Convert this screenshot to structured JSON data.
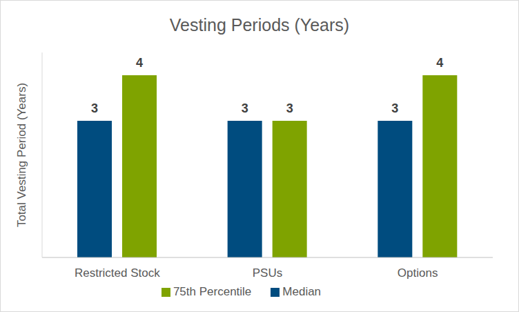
{
  "chart_data": {
    "type": "bar",
    "title": "Vesting Periods (Years)",
    "y_label": "Total Vesting Period (Years)",
    "categories": [
      "Restricted Stock",
      "PSUs",
      "Options"
    ],
    "series": [
      {
        "name": "Median",
        "color": "#004c7f",
        "values": [
          3,
          3,
          3
        ]
      },
      {
        "name": "75th Percentile",
        "color": "#7fa300",
        "values": [
          4,
          3,
          4
        ]
      }
    ],
    "ylim": [
      0,
      4.5
    ],
    "tick_labels": "x",
    "grid": false,
    "legend": "bottom",
    "data_labels": true
  }
}
